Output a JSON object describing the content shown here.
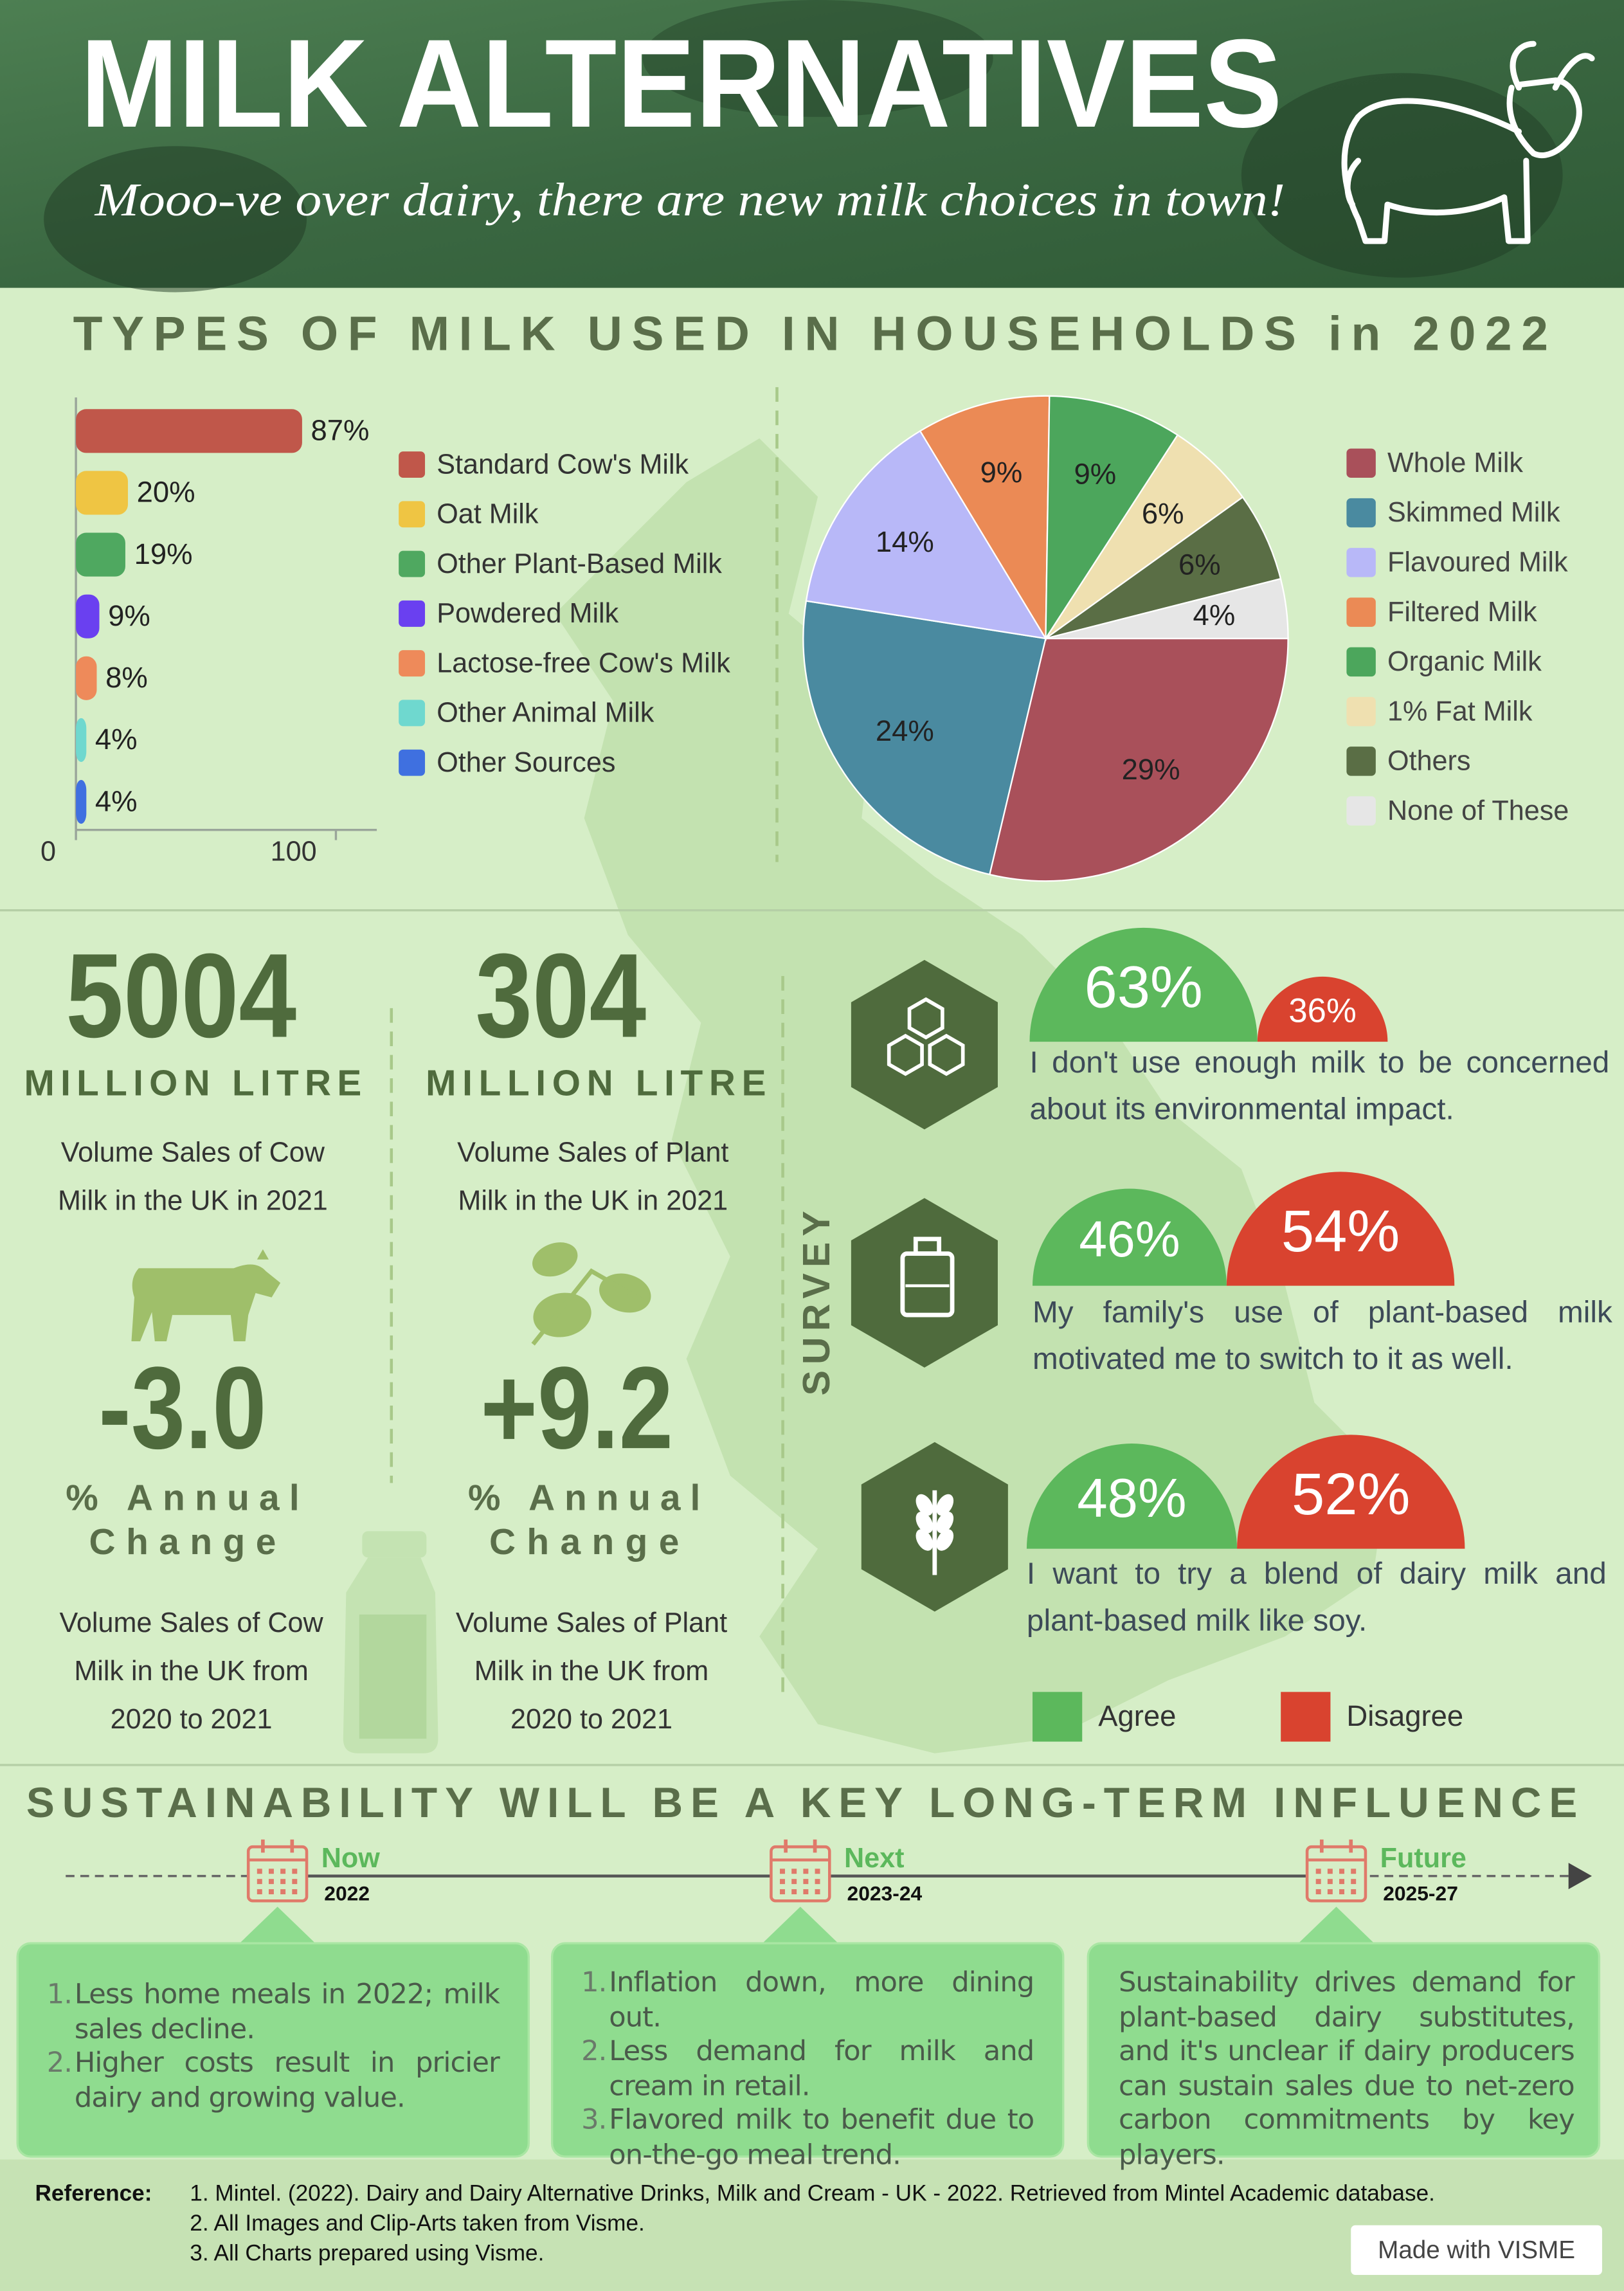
{
  "header": {
    "title": "MILK ALTERNATIVES",
    "subtitle": "Mooo-ve over dairy, there are new milk choices in town!"
  },
  "section_title": "TYPES OF MILK USED IN HOUSEHOLDS in 2022",
  "chart_data": [
    {
      "type": "bar",
      "orientation": "horizontal",
      "categories": [
        "Standard Cow's Milk",
        "Oat Milk",
        "Other Plant-Based Milk",
        "Powdered Milk",
        "Lactose-free Cow's Milk",
        "Other Animal Milk",
        "Other Sources"
      ],
      "values": [
        87,
        20,
        19,
        9,
        8,
        4,
        4
      ],
      "value_labels": [
        "87%",
        "20%",
        "19%",
        "9%",
        "8%",
        "4%",
        "4%"
      ],
      "colors": [
        "#c0574a",
        "#efc543",
        "#4fa860",
        "#6a40f0",
        "#ee8a5a",
        "#6fd8cf",
        "#3f70e0"
      ],
      "xlim": [
        0,
        100
      ],
      "xticks": [
        0,
        100
      ]
    },
    {
      "type": "pie",
      "categories": [
        "Whole Milk",
        "Skimmed Milk",
        "Flavoured Milk",
        "Filtered Milk",
        "Organic Milk",
        "1% Fat Milk",
        "Others",
        "None of These"
      ],
      "values": [
        29,
        24,
        14,
        9,
        9,
        6,
        6,
        4
      ],
      "value_labels": [
        "29%",
        "24%",
        "14%",
        "9%",
        "9%",
        "6%",
        "6%",
        "4%"
      ],
      "colors": [
        "#a9505a",
        "#4a8aa0",
        "#b8b8f8",
        "#eb8a55",
        "#4ca65c",
        "#efe0b0",
        "#5a6e45",
        "#e6e6e6"
      ]
    },
    {
      "type": "semicircles",
      "title": "SURVEY",
      "categories": [
        "I don't use enough milk to be concerned about its environmental impact.",
        "My family's use of plant-based milk motivated me to switch to it as well.",
        "I want to try a blend of dairy milk and plant-based milk like soy."
      ],
      "series": [
        {
          "name": "Agree",
          "color": "#5cb85c",
          "values": [
            63,
            46,
            48
          ],
          "value_labels": [
            "63%",
            "46%",
            "48%"
          ]
        },
        {
          "name": "Disagree",
          "color": "#d9432f",
          "values": [
            36,
            54,
            52
          ],
          "value_labels": [
            "36%",
            "54%",
            "52%"
          ]
        }
      ]
    }
  ],
  "stats": [
    {
      "value": "5004",
      "unit": "MILLION LITRE",
      "description": [
        "Volume Sales of Cow",
        "Milk in the UK in 2021"
      ],
      "change": "-3.0",
      "change_label": [
        "% Annual",
        "Change"
      ],
      "change_description": [
        "Volume Sales of Cow",
        "Milk in the UK from",
        "2020 to 2021"
      ]
    },
    {
      "value": "304",
      "unit": "MILLION LITRE",
      "description": [
        "Volume Sales of Plant",
        "Milk in the UK in 2021"
      ],
      "change": "+9.2",
      "change_label": [
        "% Annual",
        "Change"
      ],
      "change_description": [
        "Volume Sales of Plant",
        "Milk in the UK from",
        "2020 to 2021"
      ]
    }
  ],
  "timeline": {
    "title": "SUSTAINABILITY WILL BE A KEY LONG-TERM INFLUENCE",
    "stages": [
      {
        "label": "Now",
        "date": "2022",
        "items": [
          {
            "marker": "1.",
            "text": "Less home meals in 2022; milk sales decline."
          },
          {
            "marker": "2.",
            "text": "Higher costs result in pricier dairy and growing value."
          }
        ]
      },
      {
        "label": "Next",
        "date": "2023-24",
        "items": [
          {
            "marker": "1.",
            "text": "Inflation down, more dining out."
          },
          {
            "marker": "2.",
            "text": "Less demand for milk and cream in retail."
          },
          {
            "marker": "3.",
            "text": "Flavored milk to benefit due to on-the-go meal trend."
          }
        ]
      },
      {
        "label": "Future",
        "date": "2025-27",
        "text": "Sustainability drives demand for plant-based dairy substitutes, and it's unclear if dairy producers can sustain sales due to net-zero carbon commitments by key players."
      }
    ]
  },
  "reference": {
    "label": "Reference:",
    "items": [
      "1. Mintel. (2022). Dairy and Dairy Alternative Drinks, Milk and Cream - UK - 2022. Retrieved from Mintel Academic database.",
      "2. All Images and Clip-Arts taken from Visme.",
      "3. All Charts prepared using Visme."
    ]
  },
  "badge": "Made with VISME"
}
